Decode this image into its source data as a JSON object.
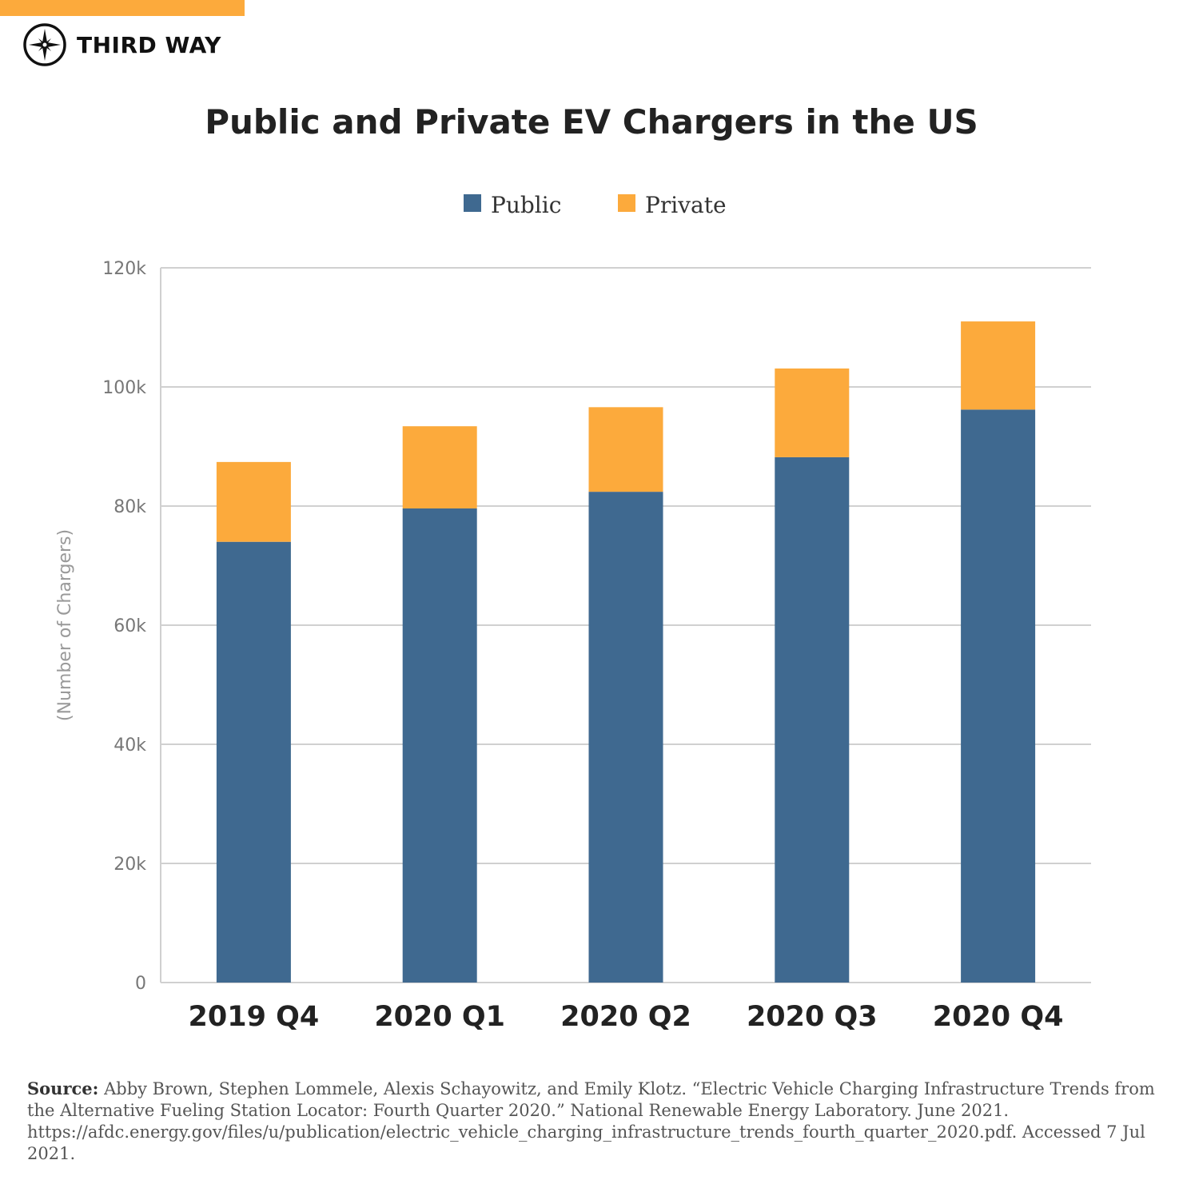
{
  "brand": {
    "name": "THIRD WAY",
    "accent": "#fcaa3c"
  },
  "chart_data": {
    "type": "bar",
    "stacked": true,
    "title": "Public and Private EV Chargers in the US",
    "ylabel": "(Number of Chargers)",
    "xlabel": "",
    "categories": [
      "2019 Q4",
      "2020 Q1",
      "2020 Q2",
      "2020 Q3",
      "2020 Q4"
    ],
    "series": [
      {
        "name": "Public",
        "color": "#3f6990",
        "values": [
          74000,
          79600,
          82400,
          88200,
          96200
        ]
      },
      {
        "name": "Private",
        "color": "#fcaa3c",
        "values": [
          13400,
          13800,
          14200,
          14900,
          14800
        ]
      }
    ],
    "ylim": [
      0,
      120000
    ],
    "yticks": [
      0,
      20000,
      40000,
      60000,
      80000,
      100000,
      120000
    ],
    "ytick_labels": [
      "0",
      "20k",
      "40k",
      "60k",
      "80k",
      "100k",
      "120k"
    ],
    "grid": true,
    "legend": "top-center"
  },
  "source": {
    "label": "Source:",
    "text": "Abby Brown, Stephen Lommele, Alexis Schayowitz, and Emily Klotz. “Electric Vehicle Charging Infrastructure Trends from the Alternative Fueling Station Locator: Fourth Quarter 2020.” National Renewable Energy Laboratory. June 2021. https://afdc.energy.gov/files/u/publication/electric_vehicle_charging_infrastructure_trends_fourth_quarter_2020.pdf. Accessed 7 Jul 2021."
  }
}
